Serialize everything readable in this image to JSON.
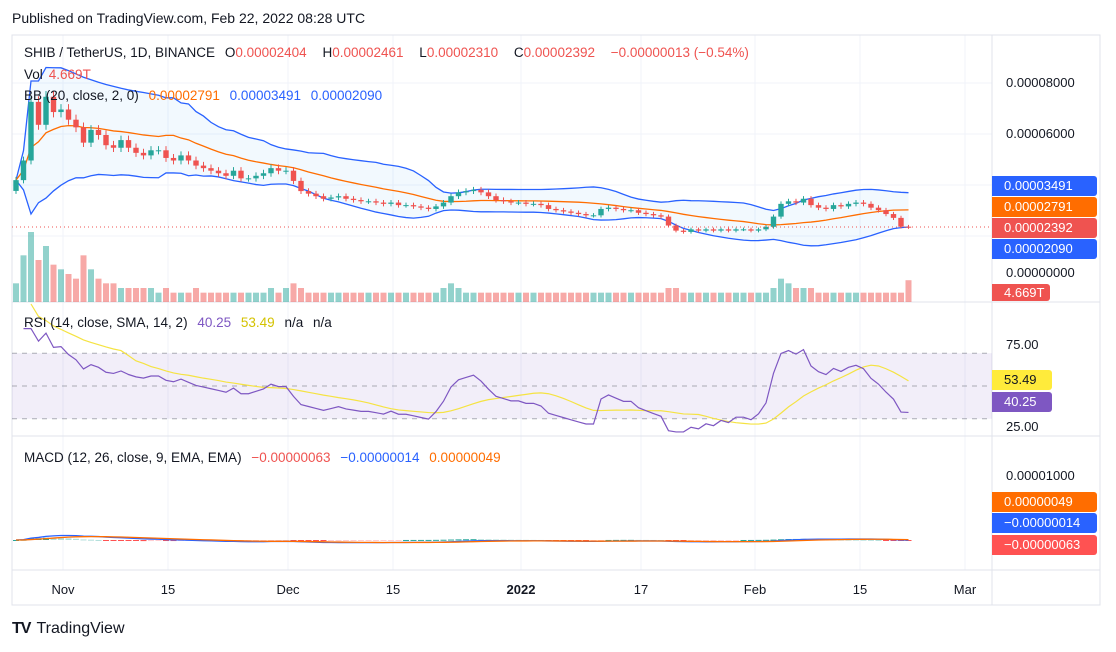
{
  "header": {
    "published": "Published on TradingView.com, Feb 22, 2022 08:28 UTC"
  },
  "legend": {
    "symbol": "SHIB / TetherUS, 1D, BINANCE",
    "o_label": "O",
    "o": "0.00002404",
    "h_label": "H",
    "h": "0.00002461",
    "l_label": "L",
    "l": "0.00002310",
    "c_label": "C",
    "c": "0.00002392",
    "change": "−0.00000013 (−0.54%)",
    "vol_label": "Vol",
    "vol": "4.669T",
    "bb_label": "BB (20, close, 2, 0)",
    "bb_basis": "0.00002791",
    "bb_upper": "0.00003491",
    "bb_lower": "0.00002090",
    "rsi_label": "RSI (14, close, SMA, 14, 2)",
    "rsi": "40.25",
    "rsi_ma": "53.49",
    "rsi_na1": "n/a",
    "rsi_na2": "n/a",
    "macd_label": "MACD (12, 26, close, 9, EMA, EMA)",
    "macd_hist": "−0.00000063",
    "macd": "−0.00000014",
    "macd_signal": "0.00000049"
  },
  "axis": {
    "price_ticks": [
      "0.00008000",
      "0.00006000",
      "0.00000000"
    ],
    "rsi_ticks": [
      "75.00",
      "25.00"
    ],
    "macd_ticks": [
      "0.00001000"
    ],
    "tags": {
      "upper": "0.00003491",
      "basis": "0.00002791",
      "close": "0.00002392",
      "lower": "0.00002090",
      "vol": "4.669T",
      "rsi_ma": "53.49",
      "rsi": "40.25",
      "signal": "0.00000049",
      "macd": "−0.00000014",
      "hist": "−0.00000063"
    },
    "time_labels": [
      "Nov",
      "15",
      "Dec",
      "15",
      "2022",
      "17",
      "Feb",
      "15",
      "Mar"
    ]
  },
  "footer": {
    "brand": "TradingView"
  },
  "colors": {
    "up": "#26a69a",
    "down": "#ef5350",
    "bb": "#2962ff",
    "basis": "#ff6d00",
    "rsi": "#7e57c2",
    "rsi_ma": "#f5e342",
    "macd": "#2962ff",
    "signal": "#ff6d00"
  },
  "chart_data": {
    "type": "candlestick",
    "title": "SHIB / TetherUS, 1D, BINANCE",
    "start_date": "2021-10-26",
    "end_date": "2022-02-22",
    "price_unit": "1e-8 USDT",
    "closes": [
      4230,
      5000,
      7300,
      6400,
      7500,
      6900,
      7000,
      6600,
      6300,
      5700,
      6200,
      6000,
      5600,
      5500,
      5800,
      5500,
      5300,
      5200,
      5400,
      5400,
      5100,
      5000,
      5200,
      5000,
      4800,
      4700,
      4600,
      4500,
      4400,
      4600,
      4300,
      4300,
      4400,
      4500,
      4700,
      4600,
      4600,
      4200,
      3800,
      3700,
      3600,
      3500,
      3550,
      3600,
      3500,
      3450,
      3400,
      3400,
      3350,
      3300,
      3350,
      3250,
      3250,
      3200,
      3150,
      3100,
      3200,
      3350,
      3600,
      3750,
      3800,
      3850,
      3750,
      3600,
      3450,
      3400,
      3350,
      3350,
      3300,
      3300,
      3250,
      3100,
      3050,
      3000,
      2950,
      2900,
      2850,
      2850,
      3100,
      3150,
      3100,
      3050,
      3050,
      2950,
      2900,
      2850,
      2800,
      2450,
      2250,
      2200,
      2300,
      2250,
      2300,
      2250,
      2300,
      2250,
      2300,
      2300,
      2250,
      2300,
      2400,
      2800,
      3300,
      3400,
      3350,
      3500,
      3250,
      3150,
      3100,
      3250,
      3200,
      3300,
      3350,
      3300,
      3150,
      3050,
      2900,
      2750,
      2404,
      2392
    ],
    "volume_unit": "T",
    "volumes": [
      4,
      10,
      15,
      9,
      12,
      8,
      7,
      6,
      5,
      10,
      7,
      5,
      4,
      4,
      3,
      3,
      3,
      3,
      3,
      2,
      3,
      2,
      2,
      2,
      3,
      2,
      2,
      2,
      2,
      2,
      2,
      2,
      2,
      2,
      3,
      2,
      3,
      4,
      3,
      2,
      2,
      2,
      2,
      2,
      2,
      2,
      2,
      2,
      2,
      2,
      2,
      2,
      2,
      2,
      2,
      2,
      2,
      3,
      4,
      3,
      2,
      2,
      2,
      2,
      2,
      2,
      2,
      2,
      2,
      2,
      2,
      2,
      2,
      2,
      2,
      2,
      2,
      2,
      2,
      2,
      2,
      2,
      2,
      2,
      2,
      2,
      2,
      3,
      3,
      2,
      2,
      2,
      2,
      2,
      2,
      2,
      2,
      2,
      2,
      2,
      2,
      3,
      5,
      4,
      3,
      3,
      3,
      2,
      2,
      2,
      2,
      2,
      2,
      2,
      2,
      2,
      2,
      2,
      2,
      4.669
    ],
    "indicators": [
      "BB(20,2)",
      "RSI(14) + SMA(14)",
      "MACD(12,26,9)"
    ],
    "price_ylim": [
      0,
      9e-05
    ],
    "rsi_ylim": [
      20,
      85
    ]
  }
}
